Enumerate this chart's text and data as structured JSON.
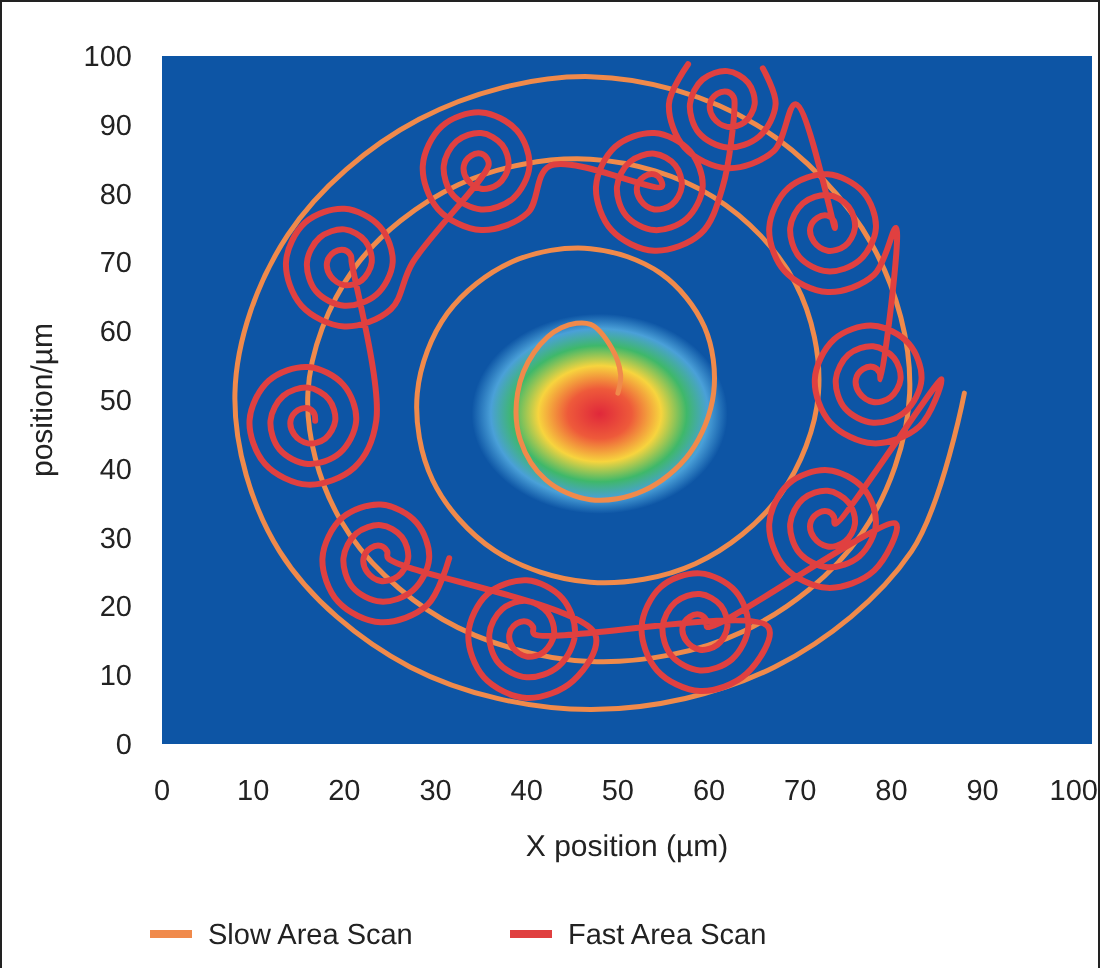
{
  "chart_data": {
    "type": "line",
    "xlabel": "X position (µm)",
    "ylabel": "position/µm",
    "xlim": [
      0,
      102
    ],
    "ylim": [
      0,
      100
    ],
    "xticks": [
      0,
      10,
      20,
      30,
      40,
      50,
      60,
      70,
      80,
      90,
      100
    ],
    "yticks": [
      0,
      10,
      20,
      30,
      40,
      50,
      60,
      70,
      80,
      90,
      100
    ],
    "grid": false,
    "legend": "bottom",
    "marker": "none",
    "line_style": "solid",
    "series": [
      {
        "name": "Slow Area Scan",
        "color": "#f08a4b",
        "x": [
          50,
          50.3,
          49.3,
          47,
          43.8,
          40.8,
          39,
          39.3,
          42.1,
          47,
          52.8,
          57.9,
          60.5,
          59.5,
          54.7,
          47,
          38.4,
          31.3,
          28,
          29.7,
          36.5,
          47,
          58.5,
          67.8,
          72,
          69.5,
          60.5,
          47,
          32.5,
          21,
          16,
          19.6,
          30.8,
          47,
          63.8,
          76.7,
          82,
          77.9,
          65.2,
          47,
          28.2,
          13.8,
          8,
          12.9,
          27.2,
          47,
          67.2,
          82.2,
          88
        ],
        "values": [
          51,
          53.7,
          57.6,
          61,
          60.5,
          56.9,
          51,
          44.2,
          38.4,
          35.5,
          36.8,
          42.3,
          51,
          60.6,
          68.4,
          72,
          70.1,
          62.6,
          51,
          38.3,
          28.1,
          23.5,
          26.2,
          36.2,
          51,
          66.9,
          79.5,
          85,
          81.3,
          69,
          51,
          32.5,
          18.1,
          12,
          16.4,
          30.5,
          51,
          72.5,
          90,
          97,
          90.8,
          74,
          51,
          28,
          11.2,
          5,
          11.2,
          28,
          51
        ]
      },
      {
        "name": "Fast Area Scan",
        "color": "#e04040",
        "x": [
          16.8,
          16.7,
          16,
          14.9,
          14.1,
          14.5,
          16,
          17.9,
          19,
          18.3,
          16,
          13.3,
          11.9,
          12.9,
          16,
          19.5,
          21.3,
          19.9,
          16,
          11.7,
          9.6,
          11.3,
          16,
          21.1,
          23.5,
          20.8,
          20.7,
          20,
          18.9,
          18.1,
          18.5,
          20,
          21.9,
          23,
          22.3,
          20,
          17.3,
          15.9,
          16.9,
          20,
          23.5,
          25.3,
          23.9,
          20,
          15.7,
          13.6,
          15.3,
          20,
          25.1,
          27.5,
          35.8,
          35.7,
          35,
          33.9,
          33.1,
          33.5,
          35,
          36.9,
          38,
          37.3,
          35,
          32.3,
          30.9,
          31.9,
          35,
          38.5,
          40.3,
          38.9,
          35,
          30.7,
          28.6,
          30.3,
          35,
          40.1,
          42.5,
          54.8,
          54.7,
          54,
          52.9,
          52.1,
          52.5,
          54,
          55.9,
          57,
          56.3,
          54,
          51.3,
          49.9,
          50.9,
          54,
          57.5,
          59.3,
          57.9,
          54,
          49.7,
          47.6,
          49.3,
          54,
          59.1,
          61.5,
          62.8,
          62.7,
          62,
          60.9,
          60.1,
          60.5,
          62,
          63.9,
          65,
          64.3,
          62,
          59.3,
          57.9,
          58.9,
          62,
          65.5,
          67.3,
          65.9,
          62,
          57.7,
          55.6,
          57.3,
          62,
          67.1,
          69.5,
          73.8,
          73.7,
          73,
          71.9,
          71.1,
          71.5,
          73,
          74.9,
          76,
          75.3,
          73,
          70.3,
          68.9,
          69.9,
          73,
          76.5,
          78.3,
          76.9,
          73,
          68.7,
          66.6,
          68.3,
          73,
          78.1,
          80.5,
          78.8,
          78.7,
          78,
          76.9,
          76.1,
          76.5,
          78,
          79.9,
          81,
          80.3,
          78,
          75.3,
          73.9,
          74.9,
          78,
          81.5,
          83.3,
          81.9,
          78,
          73.7,
          71.6,
          73.3,
          78,
          83.1,
          85.5,
          73.8,
          73.7,
          73,
          71.9,
          71.1,
          71.5,
          73,
          74.9,
          76,
          75.3,
          73,
          70.3,
          68.9,
          69.9,
          73,
          76.5,
          78.3,
          76.9,
          73,
          68.7,
          66.6,
          68.3,
          73,
          78.1,
          80.5,
          59.8,
          59.7,
          59,
          57.9,
          57.1,
          57.5,
          59,
          60.9,
          62,
          61.3,
          59,
          56.3,
          54.9,
          55.9,
          59,
          62.5,
          64.3,
          62.9,
          59,
          54.7,
          52.6,
          54.3,
          59,
          64.1,
          66.5,
          40.8,
          40.7,
          40,
          38.9,
          38.1,
          38.5,
          40,
          41.9,
          43,
          42.3,
          40,
          37.3,
          35.9,
          36.9,
          40,
          43.5,
          45.3,
          43.9,
          40,
          35.7,
          33.6,
          35.3,
          40,
          45.1,
          47.5,
          24.8,
          24.7,
          24,
          22.9,
          22.1,
          22.5,
          24,
          25.9,
          27,
          26.3,
          24,
          21.3,
          19.9,
          20.9,
          24,
          27.5,
          29.3,
          27.9,
          24,
          19.7,
          17.6,
          19.3,
          24,
          29.1,
          31.5
        ],
        "values": [
          47,
          48,
          48.8,
          48.5,
          47,
          45,
          43.7,
          44.4,
          47,
          50.1,
          51.8,
          50.6,
          47,
          42.8,
          40.7,
          42.3,
          47,
          52.2,
          54.8,
          52.8,
          47,
          40.7,
          37.7,
          40.2,
          47,
          70,
          71,
          71.8,
          71.5,
          70,
          68,
          66.7,
          67.4,
          70,
          73.1,
          74.8,
          73.6,
          70,
          65.8,
          63.7,
          65.3,
          70,
          75.2,
          77.8,
          75.8,
          70,
          63.7,
          60.7,
          63.2,
          70,
          84,
          85,
          85.8,
          85.5,
          84,
          82,
          80.7,
          81.4,
          84,
          87.1,
          88.8,
          87.6,
          84,
          79.8,
          77.7,
          79.3,
          84,
          89.2,
          91.8,
          89.8,
          84,
          77.7,
          74.7,
          77.2,
          84,
          81,
          82,
          82.8,
          82.5,
          81,
          79,
          77.7,
          78.4,
          81,
          84.1,
          85.8,
          84.6,
          81,
          76.8,
          74.7,
          76.3,
          81,
          86.2,
          88.8,
          86.8,
          81,
          74.7,
          71.7,
          74.2,
          81,
          93,
          94,
          94.8,
          94.5,
          93,
          91,
          89.7,
          90.4,
          93,
          96.1,
          97.8,
          96.6,
          93,
          88.8,
          86.7,
          88.3,
          93,
          98.2,
          null,
          98.8,
          93,
          86.7,
          83.7,
          86.2,
          93,
          75,
          76,
          76.8,
          76.5,
          75,
          73,
          71.7,
          72.4,
          75,
          78.1,
          79.8,
          78.6,
          75,
          70.8,
          68.7,
          70.3,
          75,
          80.2,
          82.8,
          80.8,
          75,
          68.7,
          65.7,
          68.2,
          75,
          53,
          54,
          54.8,
          54.5,
          53,
          51,
          49.7,
          50.4,
          53,
          56.1,
          57.8,
          56.6,
          53,
          48.8,
          46.7,
          48.3,
          53,
          58.2,
          60.8,
          58.8,
          53,
          46.7,
          43.7,
          46.2,
          53,
          32,
          33,
          33.8,
          33.5,
          32,
          30,
          28.7,
          29.4,
          32,
          35.1,
          36.8,
          35.6,
          32,
          27.8,
          25.7,
          27.3,
          32,
          37.2,
          39.8,
          37.8,
          32,
          25.7,
          22.7,
          25.2,
          32,
          17,
          18,
          18.8,
          18.5,
          17,
          15,
          13.7,
          14.4,
          17,
          20.1,
          21.8,
          20.6,
          17,
          12.8,
          10.7,
          12.3,
          17,
          22.2,
          24.8,
          22.8,
          17,
          10.7,
          7.7,
          10.2,
          17,
          16,
          17,
          17.8,
          17.5,
          16,
          14,
          12.7,
          13.4,
          16,
          19.1,
          20.8,
          19.6,
          16,
          11.8,
          9.7,
          11.3,
          16,
          21.2,
          23.8,
          21.8,
          16,
          9.7,
          6.7,
          9.2,
          16,
          27,
          28,
          28.8,
          28.5,
          27,
          25,
          23.7,
          24.4,
          27,
          30.1,
          31.8,
          30.6,
          27,
          22.8,
          20.7,
          22.3,
          27,
          32.2,
          34.8,
          32.8,
          27,
          20.7,
          17.7,
          20.2,
          27
        ]
      }
    ]
  }
}
